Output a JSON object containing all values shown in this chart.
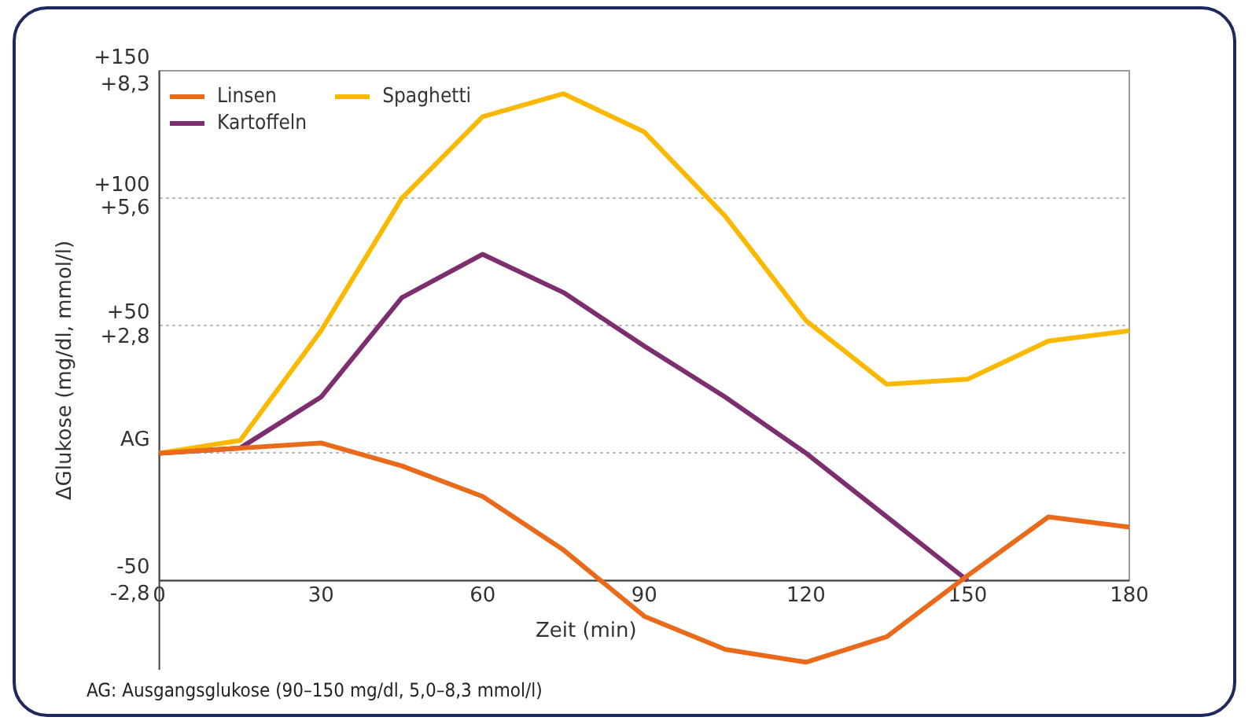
{
  "chart_data": {
    "type": "line",
    "ylabel": "ΔGlukose (mg/dl, mmol/l)",
    "xlabel": "Zeit (min)",
    "x": [
      0,
      15,
      30,
      45,
      60,
      75,
      90,
      105,
      120,
      135,
      150,
      165,
      180
    ],
    "xlim": [
      0,
      180
    ],
    "xticks": [
      0,
      30,
      60,
      90,
      120,
      150,
      180
    ],
    "ylim": [
      -85,
      150
    ],
    "yticks": [
      {
        "value": -50,
        "label": "-50"
      },
      {
        "value": 0,
        "label": "AG"
      },
      {
        "value": 50,
        "label": "+50"
      },
      {
        "value": 100,
        "label": "+100"
      },
      {
        "value": 150,
        "label": "+150"
      }
    ],
    "y2lim": [
      -4.72,
      8.33
    ],
    "y2ticks": [
      {
        "value": -2.8,
        "label": "-2,8"
      },
      {
        "value": 2.8,
        "label": "+2,8"
      },
      {
        "value": 5.6,
        "label": "+5,6"
      },
      {
        "value": 8.3,
        "label": "+8,3"
      }
    ],
    "series": [
      {
        "name": "Linsen",
        "color": "#ea6a1c",
        "values": [
          0,
          2,
          4,
          -5,
          -17,
          -38,
          -64,
          -77,
          -82,
          -72,
          -48,
          -25,
          -29
        ]
      },
      {
        "name": "Spaghetti",
        "color": "#fbb800",
        "values": [
          0,
          5,
          48,
          100,
          132,
          141,
          126,
          93,
          52,
          27,
          29,
          44,
          48
        ]
      },
      {
        "name": "Kartoffeln",
        "color": "#7d2e6f",
        "values": [
          0,
          2,
          22,
          61,
          78,
          63,
          42,
          22,
          0,
          -25,
          -50,
          null,
          null
        ]
      }
    ],
    "grid": "y",
    "legend": "top left",
    "marker": "none",
    "line_style": "solid",
    "annotations": [
      "AG: Ausgangsglukose (90–150 mg/dl, 5,0–8,3 mmol/l)"
    ]
  }
}
